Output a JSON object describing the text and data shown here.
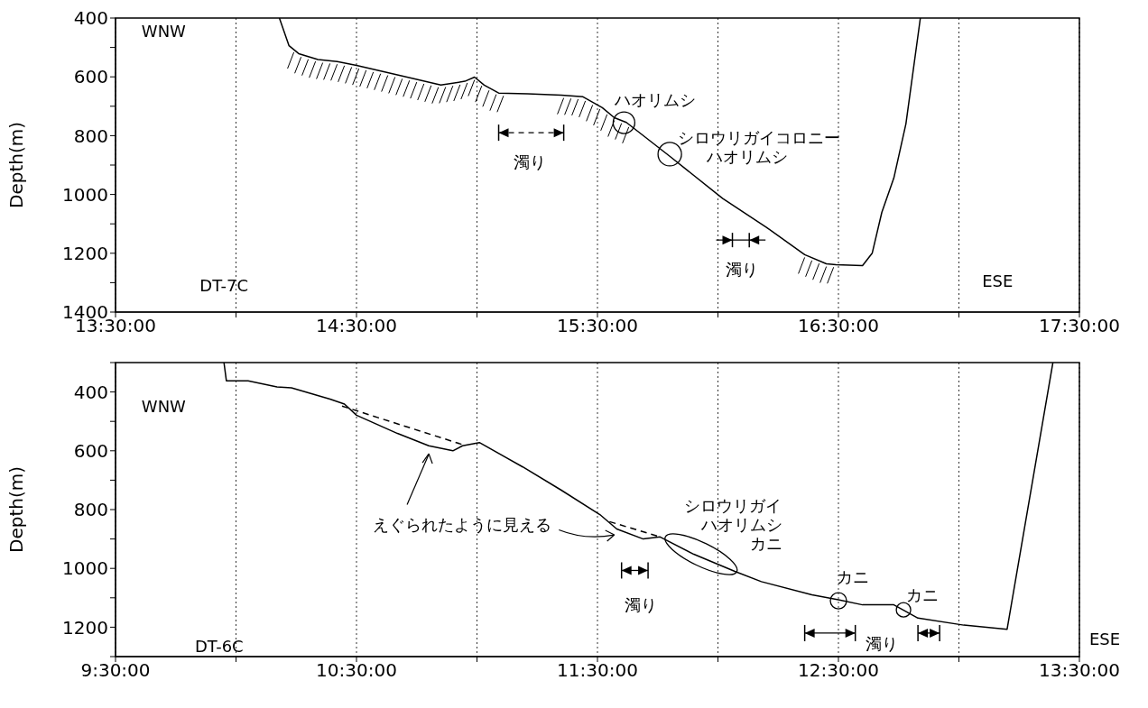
{
  "chart_data": [
    {
      "type": "line",
      "ylabel": "Depth(m)",
      "grid": "x",
      "marker": "none",
      "xlim": [
        13.5,
        17.5
      ],
      "ylim": [
        1400,
        400
      ],
      "xticks": [
        {
          "value": 13.5,
          "label": "13:30:00"
        },
        {
          "value": 14,
          "label": null
        },
        {
          "value": 14.5,
          "label": "14:30:00"
        },
        {
          "value": 15,
          "label": null
        },
        {
          "value": 15.5,
          "label": "15:30:00"
        },
        {
          "value": 16,
          "label": null
        },
        {
          "value": 16.5,
          "label": "16:30:00"
        },
        {
          "value": 17,
          "label": null
        },
        {
          "value": 17.5,
          "label": "17:30:00"
        }
      ],
      "yticks": [
        400,
        {
          "value": 500,
          "label": null
        },
        600,
        {
          "value": 700,
          "label": null
        },
        800,
        {
          "value": 900,
          "label": null
        },
        1000,
        {
          "value": 1100,
          "label": null
        },
        1200,
        {
          "value": 1300,
          "label": null
        },
        1400
      ],
      "series": [
        {
          "color": "#000000",
          "line_style": "solid",
          "x": [
            14.18,
            14.22,
            14.26,
            14.34,
            14.42,
            14.5,
            14.73,
            14.85,
            14.95,
            14.99,
            15.03,
            15.09,
            15.21,
            15.35,
            15.44,
            15.52,
            15.57,
            15.62,
            15.8,
            16.02,
            16.2,
            16.36,
            16.45,
            16.49,
            16.6,
            16.64,
            16.68,
            16.73,
            16.78,
            16.84
          ],
          "values": [
            400,
            494,
            521,
            541,
            548,
            561,
            605,
            628,
            615,
            601,
            628,
            655,
            658,
            662,
            668,
            705,
            739,
            755,
            870,
            1014,
            1111,
            1205,
            1236,
            1239,
            1242,
            1200,
            1061,
            944,
            760,
            400
          ]
        }
      ],
      "annotations": [
        "WNW",
        "DT-7C",
        "ESE",
        "ハオリムシ",
        "シロウリガイコロニー",
        "ハオリムシ",
        "濁り",
        "濁り"
      ]
    },
    {
      "type": "line",
      "ylabel": "Depth(m)",
      "grid": "x",
      "marker": "none",
      "xlim": [
        9.5,
        13.5
      ],
      "ylim": [
        1300,
        300
      ],
      "xticks": [
        {
          "value": 9.5,
          "label": "9:30:00"
        },
        {
          "value": 10,
          "label": null
        },
        {
          "value": 10.5,
          "label": "10:30:00"
        },
        {
          "value": 11,
          "label": null
        },
        {
          "value": 11.5,
          "label": "11:30:00"
        },
        {
          "value": 12,
          "label": null
        },
        {
          "value": 12.5,
          "label": "12:30:00"
        },
        {
          "value": 13,
          "label": null
        },
        {
          "value": 13.5,
          "label": "13:30:00"
        }
      ],
      "yticks": [
        {
          "value": 300,
          "label": null
        },
        400,
        {
          "value": 500,
          "label": null
        },
        600,
        {
          "value": 700,
          "label": null
        },
        800,
        {
          "value": 900,
          "label": null
        },
        1000,
        {
          "value": 1100,
          "label": null
        },
        1200,
        {
          "value": 1300,
          "label": null
        }
      ],
      "series": [
        {
          "color": "#000000",
          "line_style": "solid",
          "x": [
            9.95,
            9.96,
            10.05,
            10.17,
            10.23,
            10.39,
            10.45,
            10.5,
            10.67,
            10.8,
            10.9,
            10.94,
            11.01,
            11.19,
            11.35,
            11.51,
            11.58,
            11.69,
            11.76,
            11.9,
            12.07,
            12.18,
            12.39,
            12.5,
            12.6,
            12.73,
            12.83,
            13.02,
            13.2,
            13.39
          ],
          "values": [
            300,
            362,
            362,
            383,
            386,
            424,
            441,
            479,
            541,
            583,
            600,
            583,
            572,
            655,
            734,
            817,
            866,
            900,
            893,
            952,
            1010,
            1045,
            1090,
            1107,
            1124,
            1124,
            1169,
            1193,
            1207,
            300
          ]
        },
        {
          "color": "#000000",
          "line_style": "dashed",
          "x": [
            10.44,
            10.94
          ],
          "values": [
            448,
            579
          ]
        },
        {
          "color": "#000000",
          "line_style": "dashed",
          "x": [
            11.55,
            11.76
          ],
          "values": [
            841,
            893
          ]
        }
      ],
      "annotations": [
        "WNW",
        "DT-6C",
        "ESE",
        "えぐられたように見える",
        "シロウリガイ",
        "ハオリムシ",
        "カニ",
        "カニ",
        "カニ",
        "濁り",
        "濁り"
      ]
    }
  ]
}
